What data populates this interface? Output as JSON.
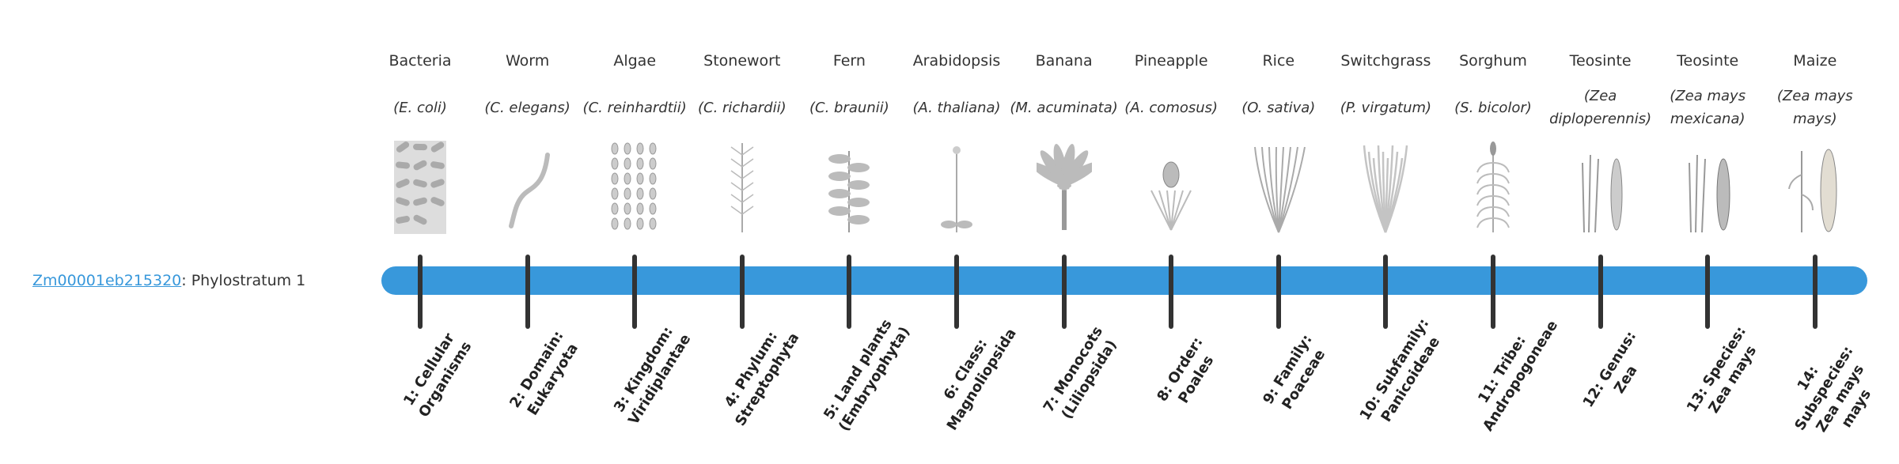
{
  "gene": {
    "id": "Zm00001eb215320",
    "suffix": ": Phylostratum 1"
  },
  "colors": {
    "bar": "#3898db",
    "tick": "#333333",
    "link": "#3898db"
  },
  "strata": [
    {
      "name": "Bacteria",
      "species": "(E. coli)",
      "label": "1: Cellular Organisms",
      "icon": "bacteria-icon"
    },
    {
      "name": "Worm",
      "species": "(C. elegans)",
      "label": "2: Domain: Eukaryota",
      "icon": "worm-icon"
    },
    {
      "name": "Algae",
      "species": "(C. reinhardtii)",
      "label": "3: Kingdom: Viridiplantae",
      "icon": "algae-icon"
    },
    {
      "name": "Stonewort",
      "species": "(C. richardii)",
      "label": "4: Phylum: Streptophyta",
      "icon": "stonewort-icon"
    },
    {
      "name": "Fern",
      "species": "(C. braunii)",
      "label": "5: Land plants (Embryophyta)",
      "icon": "fern-icon"
    },
    {
      "name": "Arabidopsis",
      "species": "(A. thaliana)",
      "label": "6: Class: Magnoliopsida",
      "icon": "arabidopsis-icon"
    },
    {
      "name": "Banana",
      "species": "(M. acuminata)",
      "label": "7: Monocots (Liliopsida)",
      "icon": "banana-icon"
    },
    {
      "name": "Pineapple",
      "species": "(A. comosus)",
      "label": "8: Order: Poales",
      "icon": "pineapple-icon"
    },
    {
      "name": "Rice",
      "species": "(O. sativa)",
      "label": "9: Family: Poaceae",
      "icon": "rice-icon"
    },
    {
      "name": "Switchgrass",
      "species": "(P. virgatum)",
      "label": "10: Subfamily: Panicoideae",
      "icon": "switchgrass-icon"
    },
    {
      "name": "Sorghum",
      "species": "(S. bicolor)",
      "label": "11: Tribe: Andropogoneae",
      "icon": "sorghum-icon"
    },
    {
      "name": "Teosinte",
      "species": "(Zea diploperennis)",
      "label": "12: Genus: Zea",
      "icon": "teosinte-icon"
    },
    {
      "name": "Teosinte",
      "species": "(Zea mays mexicana)",
      "label": "13: Species: Zea mays",
      "icon": "teosinte-mexicana-icon"
    },
    {
      "name": "Maize",
      "species": "(Zea mays mays)",
      "label": "14: Subspecies: Zea mays mays",
      "icon": "maize-icon"
    }
  ]
}
